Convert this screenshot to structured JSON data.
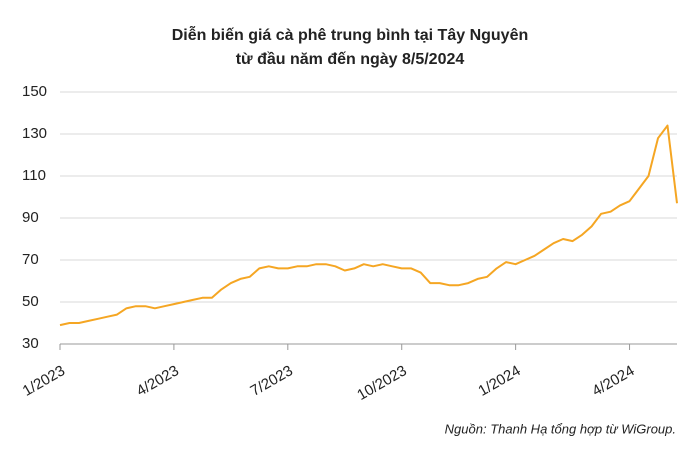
{
  "chart_data": {
    "type": "line",
    "title": [
      "Diễn biến giá cà phê trung bình tại Tây Nguyên",
      "từ đầu năm đến ngày 8/5/2024"
    ],
    "source": "Nguồn: Thanh Hạ tổng hợp từ WiGroup.",
    "categories": [
      "1/2023",
      null,
      null,
      null,
      null,
      null,
      null,
      null,
      null,
      null,
      null,
      null,
      "4/2023",
      null,
      null,
      null,
      null,
      null,
      null,
      null,
      null,
      null,
      null,
      null,
      "7/2023",
      null,
      null,
      null,
      null,
      null,
      null,
      null,
      null,
      null,
      null,
      null,
      "10/2023",
      null,
      null,
      null,
      null,
      null,
      null,
      null,
      null,
      null,
      null,
      null,
      "1/2024",
      null,
      null,
      null,
      null,
      null,
      null,
      null,
      null,
      null,
      null,
      null,
      "4/2024",
      null,
      null,
      null,
      null,
      null
    ],
    "values": [
      39,
      40,
      40,
      41,
      42,
      43,
      44,
      47,
      48,
      48,
      47,
      48,
      49,
      50,
      51,
      52,
      52,
      56,
      59,
      61,
      62,
      66,
      67,
      66,
      66,
      67,
      67,
      68,
      68,
      67,
      65,
      66,
      68,
      67,
      68,
      67,
      66,
      66,
      64,
      59,
      59,
      58,
      58,
      59,
      61,
      62,
      66,
      69,
      68,
      70,
      72,
      75,
      78,
      80,
      79,
      82,
      86,
      92,
      93,
      96,
      98,
      104,
      110,
      128,
      134,
      97
    ],
    "color": "#f5a623",
    "ylim": [
      30,
      150
    ],
    "yticks": [
      30,
      50,
      70,
      90,
      110,
      130,
      150
    ],
    "grid": true
  }
}
